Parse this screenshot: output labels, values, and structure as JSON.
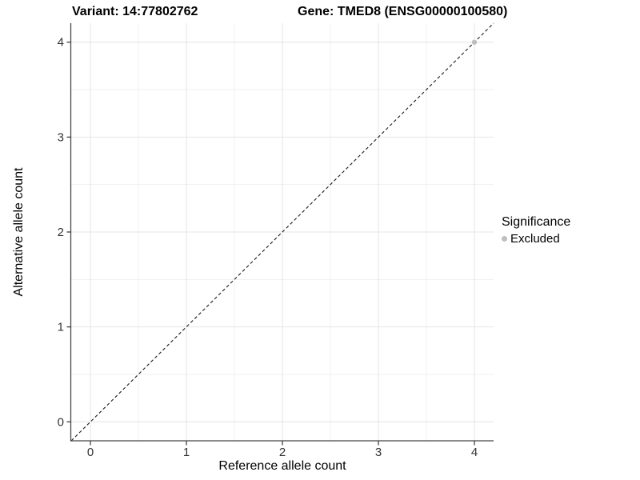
{
  "chart_data": {
    "type": "scatter",
    "title_parts": [
      "Variant: 14:77802762",
      "Gene: TMED8 (ENSG00000100580)"
    ],
    "xlabel": "Reference allele count",
    "ylabel": "Alternative allele count",
    "xlim": [
      -0.2,
      4.2
    ],
    "ylim": [
      -0.2,
      4.2
    ],
    "x_ticks": [
      0,
      1,
      2,
      3,
      4
    ],
    "y_ticks": [
      0,
      1,
      2,
      3,
      4
    ],
    "x_minor_ticks": [
      0.5,
      1.5,
      2.5,
      3.5
    ],
    "y_minor_ticks": [
      0.5,
      1.5,
      2.5,
      3.5
    ],
    "grid": true,
    "reference_line": {
      "type": "identity",
      "style": "dashed",
      "x1": -0.2,
      "y1": -0.2,
      "x2": 4.2,
      "y2": 4.2
    },
    "series": [
      {
        "name": "Excluded",
        "color": "#bebebe",
        "points": [
          {
            "x": 4,
            "y": 4
          }
        ]
      }
    ],
    "legend": {
      "title": "Significance",
      "position": "right",
      "items": [
        {
          "label": "Excluded",
          "color": "#bebebe"
        }
      ]
    },
    "style": {
      "grid_major": "#e4e4e4",
      "grid_minor": "#f0f0f0",
      "axis": "#464646",
      "tick": "#333333",
      "tick_label_color": "#333333",
      "reference_line_color": "#1a1a1a",
      "panel_background": "#ffffff"
    }
  }
}
